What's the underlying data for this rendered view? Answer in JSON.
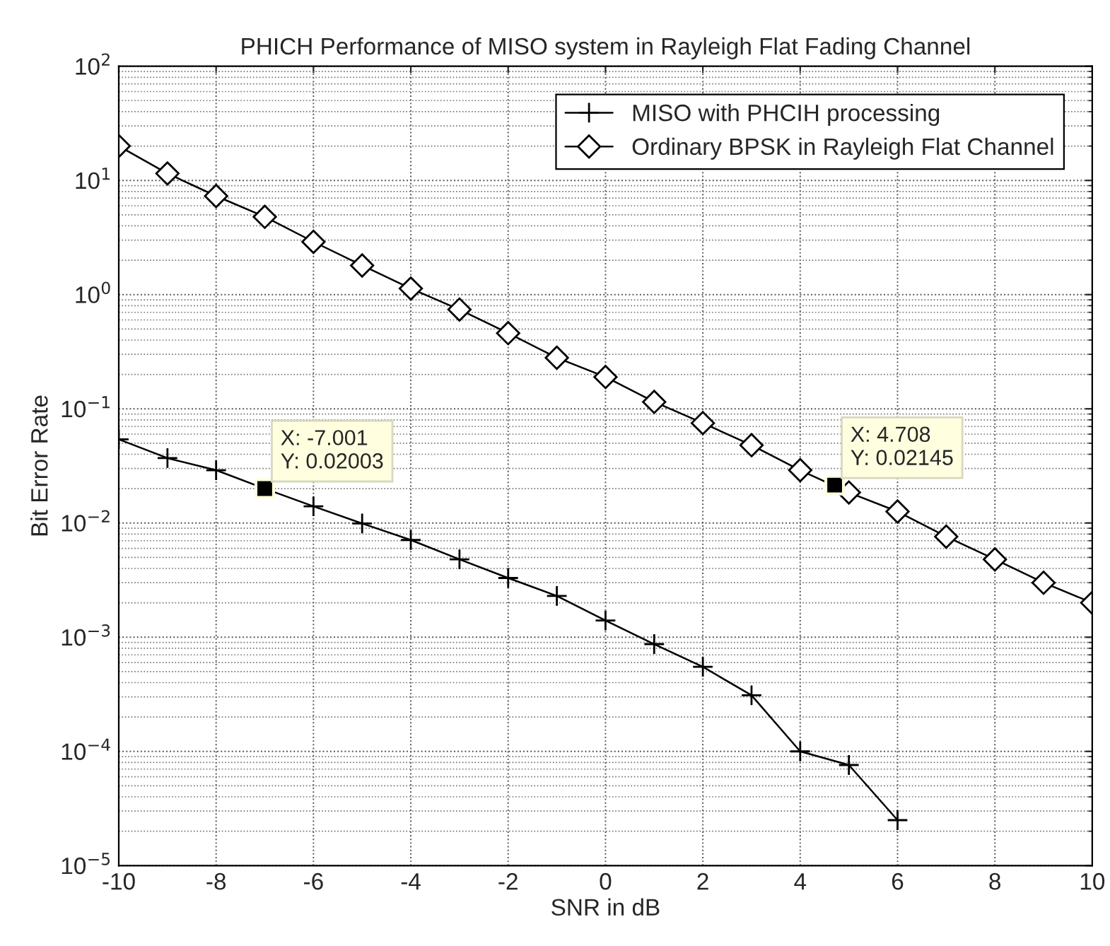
{
  "chart_data": {
    "type": "line",
    "title": "PHICH Performance of MISO system in Rayleigh Flat Fading Channel",
    "xlabel": "SNR in dB",
    "ylabel": "Bit Error Rate",
    "x": [
      -10,
      -9,
      -8,
      -7,
      -6,
      -5,
      -4,
      -3,
      -2,
      -1,
      0,
      1,
      2,
      3,
      4,
      5,
      6,
      7,
      8,
      9,
      10
    ],
    "series": [
      {
        "name": "MISO with PHCIH processing",
        "color": "#000000",
        "marker": "cross",
        "values": [
          0.054,
          0.037,
          0.029,
          0.02,
          0.014,
          0.0099,
          0.0071,
          0.0048,
          0.0033,
          0.0023,
          0.0014,
          0.00087,
          0.00055,
          0.00031,
          0.0001,
          7.6e-05,
          2.5e-05,
          null,
          null,
          null,
          null
        ]
      },
      {
        "name": "Ordinary BPSK in Rayleigh Flat Channel",
        "color": "#000000",
        "marker": "diamond",
        "values": [
          20,
          11.5,
          7.3,
          4.8,
          2.9,
          1.8,
          1.13,
          0.74,
          0.46,
          0.28,
          0.19,
          0.115,
          0.075,
          0.048,
          0.029,
          0.0185,
          0.0126,
          0.0076,
          0.0048,
          0.003,
          0.002
        ]
      }
    ],
    "annotations": [
      {
        "text": "X: -7.001\nY: 0.02003",
        "x": -7.001,
        "y": 0.02003
      },
      {
        "text": "X: 4.708\nY: 0.02145",
        "x": 4.708,
        "y": 0.02145
      }
    ],
    "log": "y",
    "grid": true,
    "legend": "top right",
    "line_style": "solid",
    "xlim": [
      -10,
      10
    ],
    "xticks": [
      -10,
      -8,
      -6,
      -4,
      -2,
      0,
      2,
      4,
      6,
      8,
      10
    ],
    "ylim": [
      1e-05,
      100
    ],
    "yticks": [
      {
        "value": 1e-05,
        "label": "10$^{−5}$"
      },
      {
        "value": 0.0001,
        "label": "10$^{−4}$"
      },
      {
        "value": 0.001,
        "label": "10$^{−3}$"
      },
      {
        "value": 0.01,
        "label": "10$^{−2}$"
      },
      {
        "value": 0.1,
        "label": "10$^{−1}$"
      },
      {
        "value": 1,
        "label": "10$^{0}$"
      },
      {
        "value": 10,
        "label": "10$^{1}$"
      },
      {
        "value": 100,
        "label": "10$^{2}$"
      }
    ]
  }
}
